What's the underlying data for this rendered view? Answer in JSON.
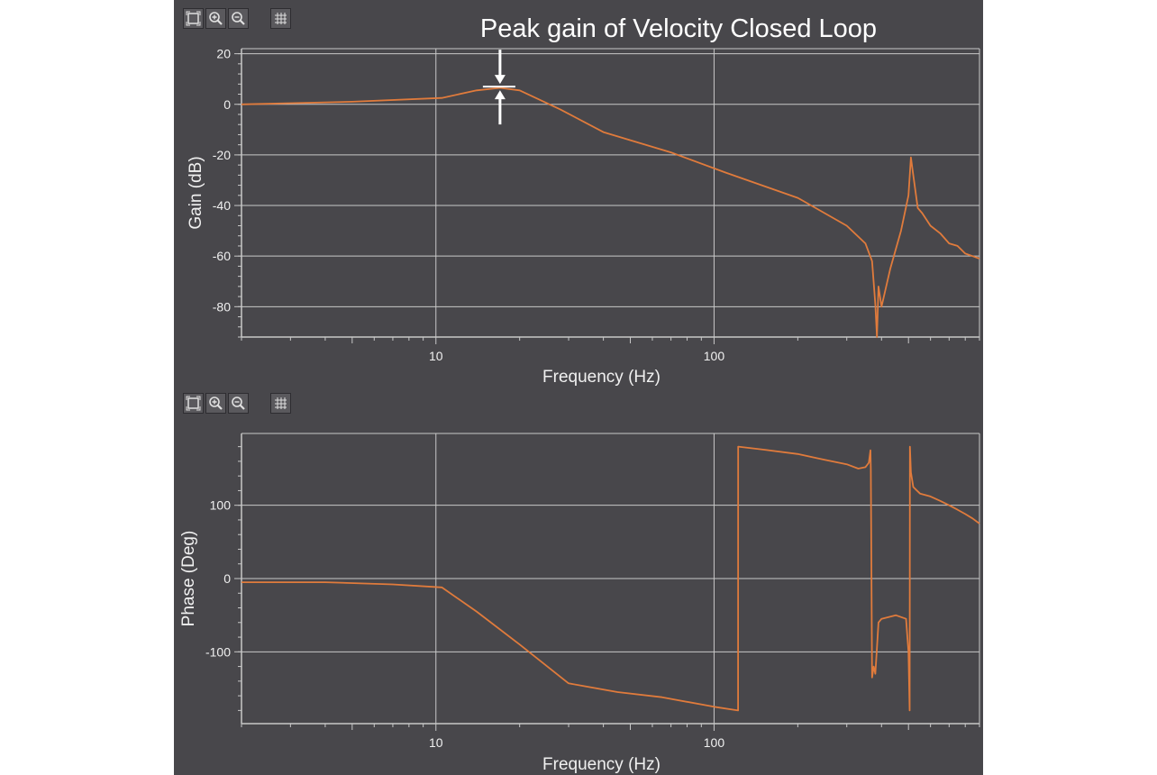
{
  "toolbars": [
    {
      "buttons": [
        {
          "name": "zoom-fit-icon"
        },
        {
          "name": "zoom-in-icon"
        },
        {
          "name": "zoom-out-icon"
        },
        {
          "name": "grid-toggle-icon"
        }
      ]
    },
    {
      "buttons": [
        {
          "name": "zoom-fit-icon"
        },
        {
          "name": "zoom-in-icon"
        },
        {
          "name": "zoom-out-icon"
        },
        {
          "name": "grid-toggle-icon"
        }
      ]
    }
  ],
  "colors": {
    "background": "#48474b",
    "series": "#e07b3c",
    "grid": "#c8c8c8",
    "annotation": "#ffffff"
  },
  "chart_data": [
    {
      "type": "line",
      "title": "Peak gain of Velocity Closed Loop",
      "xlabel": "Frequency (Hz)",
      "ylabel": "Gain (dB)",
      "xscale": "log",
      "xlim": [
        2,
        900
      ],
      "ylim": [
        -92,
        22
      ],
      "grid": true,
      "xticks": [
        {
          "value": 10,
          "label": "10"
        },
        {
          "value": 100,
          "label": "100"
        }
      ],
      "yticks": [
        {
          "value": 20,
          "label": "20"
        },
        {
          "value": 0,
          "label": "0"
        },
        {
          "value": -20,
          "label": "-20"
        },
        {
          "value": -40,
          "label": "-40"
        },
        {
          "value": -60,
          "label": "-60"
        },
        {
          "value": -80,
          "label": "-80"
        }
      ],
      "annotation": {
        "type": "peak-marker",
        "x": 17,
        "y": 7
      },
      "series": [
        {
          "x": [
            2,
            5,
            10.5,
            14,
            17,
            20,
            28,
            40,
            70,
            110,
            200,
            300,
            350,
            370,
            380,
            385,
            390,
            400,
            430,
            470,
            500,
            510,
            520,
            540,
            560,
            600,
            650,
            700,
            750,
            800,
            850,
            900
          ],
          "y": [
            0,
            1,
            2.5,
            5.5,
            6.5,
            5.5,
            -2,
            -11,
            -19,
            -27,
            -37,
            -48,
            -55,
            -62,
            -79,
            -92,
            -72,
            -80,
            -65,
            -50,
            -36,
            -21,
            -28,
            -41,
            -43,
            -48,
            -51,
            -55,
            -56,
            -59,
            -60,
            -61
          ]
        }
      ]
    },
    {
      "type": "line",
      "xlabel": "Frequency (Hz)",
      "ylabel": "Phase (Deg)",
      "xscale": "log",
      "xlim": [
        2,
        900
      ],
      "ylim": [
        -198,
        198
      ],
      "grid": true,
      "xticks": [
        {
          "value": 10,
          "label": "10"
        },
        {
          "value": 100,
          "label": "100"
        }
      ],
      "yticks": [
        {
          "value": 100,
          "label": "100"
        },
        {
          "value": 0,
          "label": "0"
        },
        {
          "value": -100,
          "label": "-100"
        }
      ],
      "series": [
        {
          "x": [
            2,
            4,
            7,
            10.5,
            14,
            20,
            30,
            45,
            65,
            100,
            122,
            122.1,
            150,
            200,
            250,
            300,
            330,
            350,
            360,
            365,
            366,
            370,
            375,
            380,
            385,
            390,
            400,
            450,
            490,
            500,
            505,
            506,
            510,
            520,
            550,
            600,
            650,
            700,
            750,
            800,
            850,
            900
          ],
          "y": [
            -5,
            -5,
            -8,
            -12,
            -45,
            -90,
            -143,
            -155,
            -162,
            -175,
            -180,
            180,
            176,
            170,
            162,
            156,
            150,
            152,
            158,
            175,
            150,
            -135,
            -120,
            -130,
            -95,
            -60,
            -55,
            -50,
            -55,
            -100,
            -180,
            180,
            145,
            125,
            116,
            112,
            106,
            100,
            94,
            88,
            82,
            75
          ]
        }
      ]
    }
  ]
}
